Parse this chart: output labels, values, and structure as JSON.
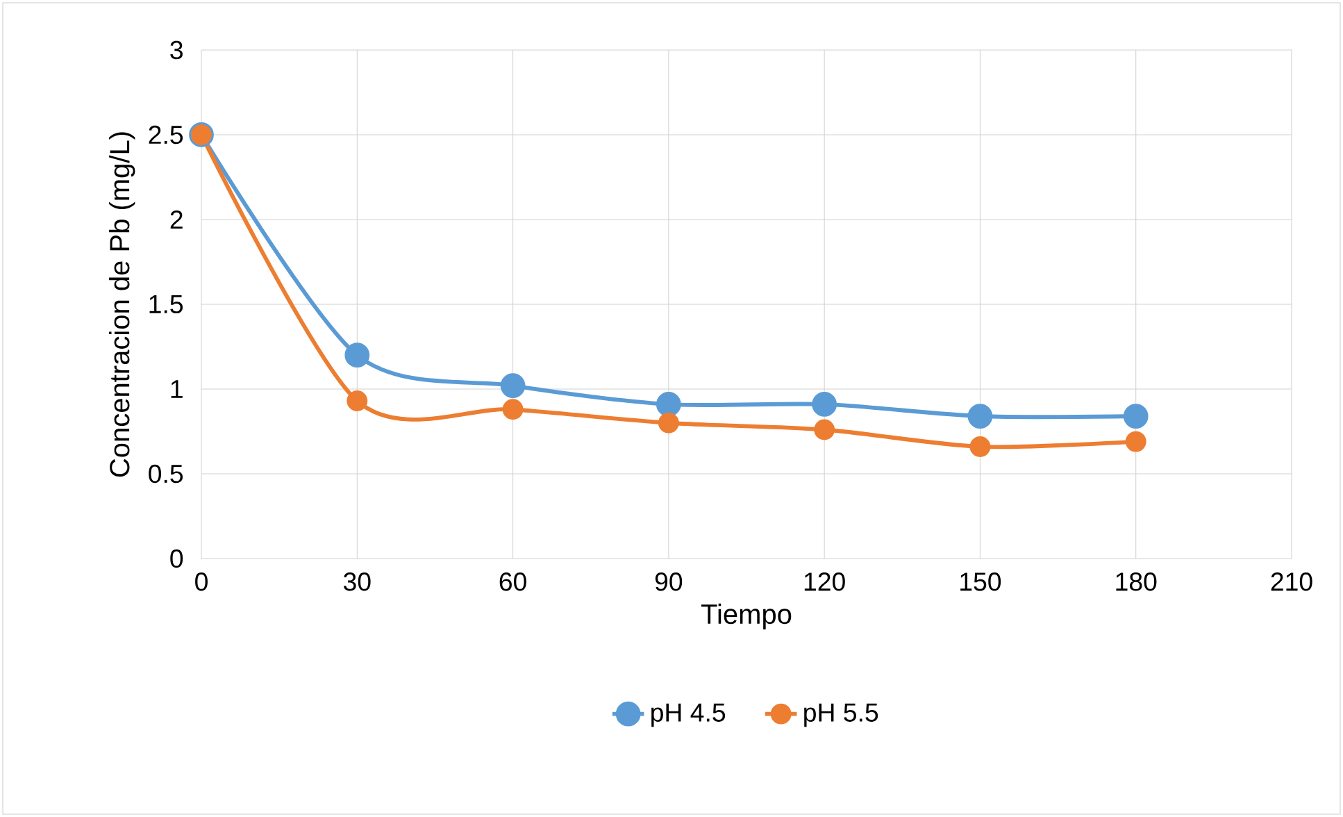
{
  "chart_data": {
    "type": "line",
    "xlabel": "Tiempo",
    "ylabel": "Concentracion de Pb (mg/L)",
    "x": [
      0,
      30,
      60,
      90,
      120,
      150,
      180
    ],
    "series": [
      {
        "name": "pH 4.5",
        "color": "#5b9bd5",
        "values": [
          2.5,
          1.2,
          1.02,
          0.91,
          0.91,
          0.84,
          0.84
        ]
      },
      {
        "name": "pH 5.5",
        "color": "#ed7d31",
        "values": [
          2.5,
          0.93,
          0.88,
          0.8,
          0.76,
          0.66,
          0.69
        ]
      }
    ],
    "xlim": [
      0,
      210
    ],
    "xticks": [
      0,
      30,
      60,
      90,
      120,
      150,
      180,
      210
    ],
    "ylim": [
      0,
      3
    ],
    "yticks": [
      0,
      0.5,
      1,
      1.5,
      2,
      2.5,
      3
    ],
    "grid": true,
    "legend": "bottom",
    "marker": "circle",
    "line_style": "solid"
  }
}
